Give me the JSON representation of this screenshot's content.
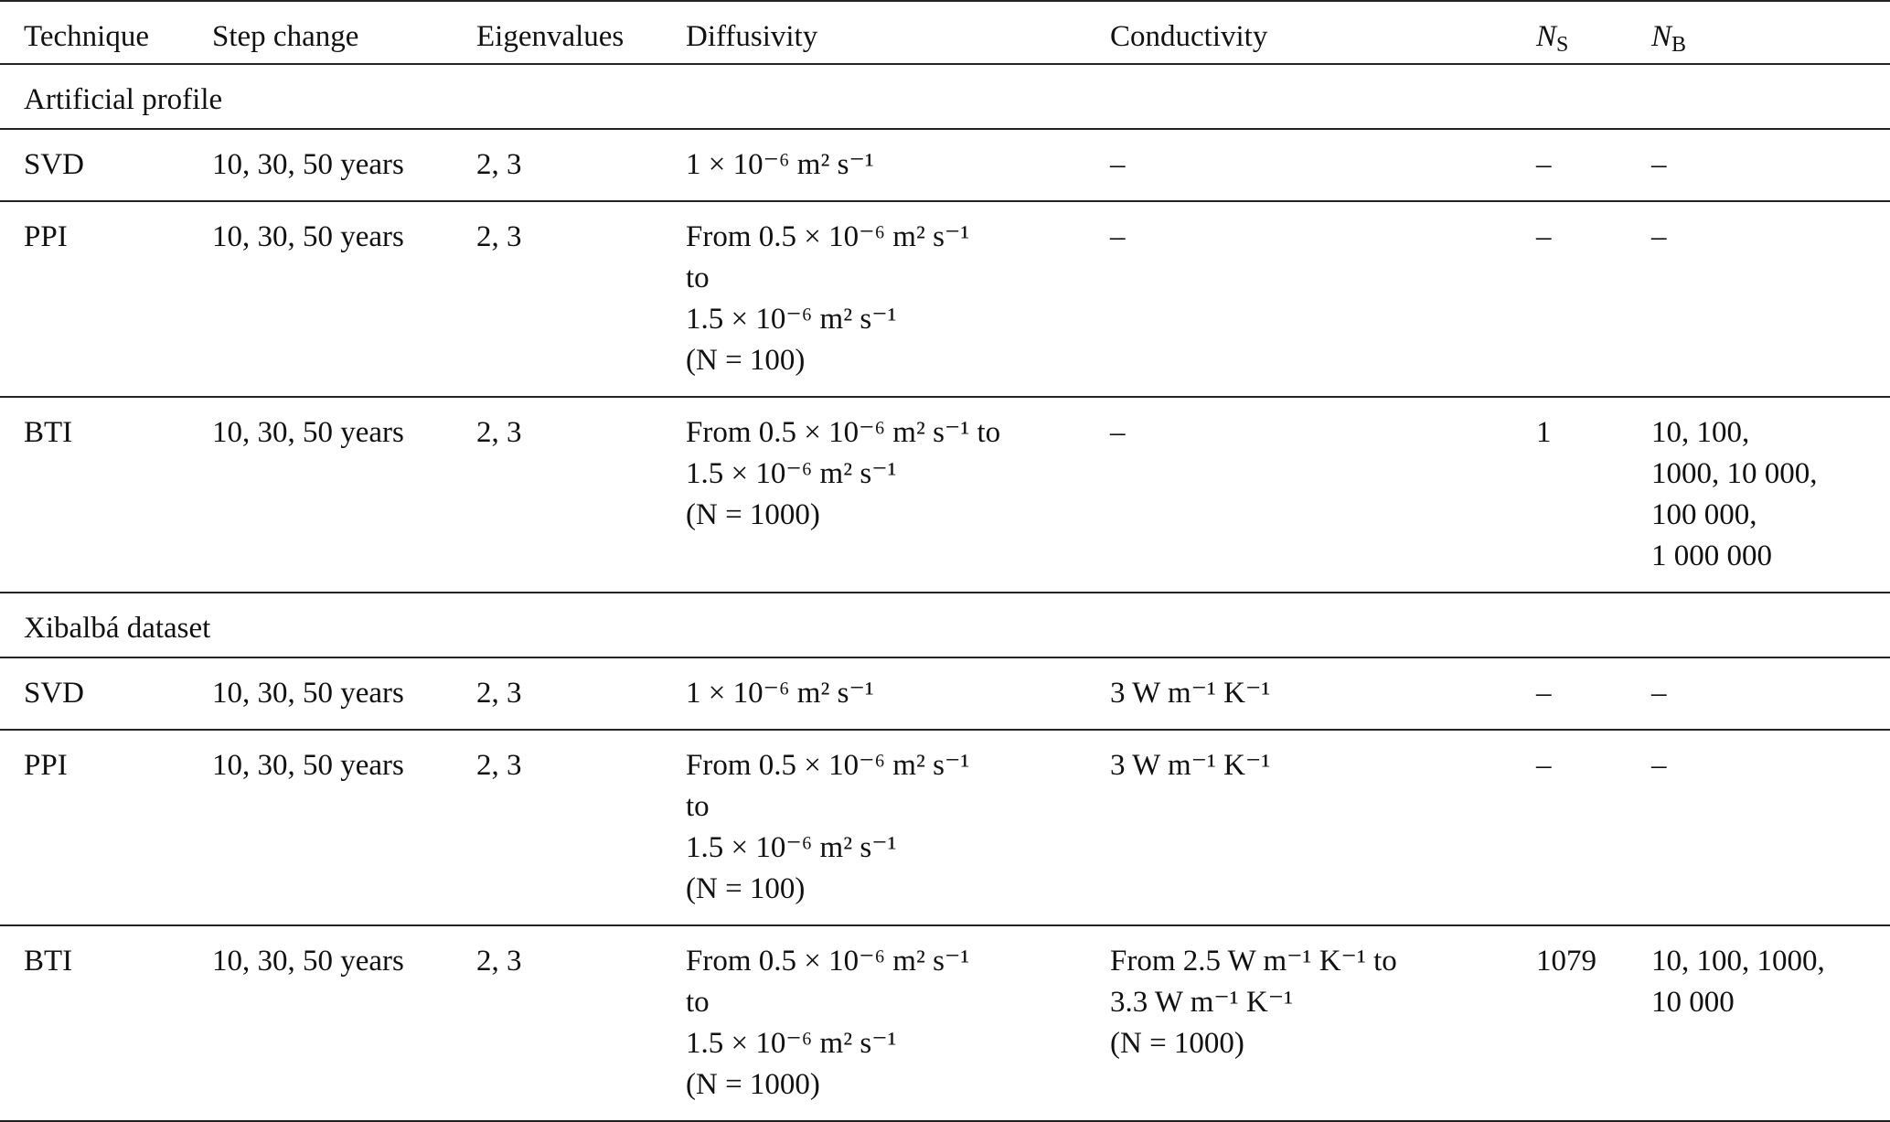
{
  "header": {
    "columns": [
      "Technique",
      "Step change",
      "Eigenvalues",
      "Diffusivity",
      "Conductivity"
    ],
    "ns": {
      "main": "N",
      "sub": "S"
    },
    "nb": {
      "main": "N",
      "sub": "B"
    }
  },
  "sections": [
    {
      "title": "Artificial profile",
      "rows": [
        {
          "cells": [
            [
              "SVD"
            ],
            [
              "10, 30, 50 years"
            ],
            [
              "2, 3"
            ],
            [
              "1 × 10⁻⁶ m² s⁻¹"
            ],
            [
              "–"
            ],
            [
              "–"
            ],
            [
              "–"
            ]
          ]
        },
        {
          "cells": [
            [
              "PPI"
            ],
            [
              "10, 30, 50 years"
            ],
            [
              "2, 3"
            ],
            [
              "From     0.5 × 10⁻⁶ m² s⁻¹",
              "to",
              "1.5 × 10⁻⁶ m² s⁻¹",
              "(N = 100)"
            ],
            [
              "–"
            ],
            [
              "–"
            ],
            [
              "–"
            ]
          ]
        },
        {
          "cells": [
            [
              "BTI"
            ],
            [
              "10, 30, 50 years"
            ],
            [
              "2, 3"
            ],
            [
              "From 0.5 × 10⁻⁶ m² s⁻¹ to",
              "1.5 × 10⁻⁶ m² s⁻¹",
              "(N = 1000)"
            ],
            [
              "–"
            ],
            [
              "1"
            ],
            [
              "10, 100,",
              "1000, 10 000,",
              "100 000,",
              "1 000 000"
            ]
          ]
        }
      ]
    },
    {
      "title": "Xibalbá dataset",
      "rows": [
        {
          "cells": [
            [
              "SVD"
            ],
            [
              "10, 30, 50 years"
            ],
            [
              "2, 3"
            ],
            [
              "1 × 10⁻⁶ m² s⁻¹"
            ],
            [
              "3 W m⁻¹ K⁻¹"
            ],
            [
              "–"
            ],
            [
              "–"
            ]
          ]
        },
        {
          "cells": [
            [
              "PPI"
            ],
            [
              "10, 30, 50 years"
            ],
            [
              "2, 3"
            ],
            [
              "From     0.5 × 10⁻⁶ m² s⁻¹",
              "to",
              "1.5 × 10⁻⁶ m² s⁻¹",
              "(N = 100)"
            ],
            [
              "3 W m⁻¹ K⁻¹"
            ],
            [
              "–"
            ],
            [
              "–"
            ]
          ]
        },
        {
          "cells": [
            [
              "BTI"
            ],
            [
              "10, 30, 50 years"
            ],
            [
              "2, 3"
            ],
            [
              "From     0.5 × 10⁻⁶ m² s⁻¹",
              "to",
              "1.5 × 10⁻⁶ m² s⁻¹",
              "(N = 1000)"
            ],
            [
              "From 2.5 W m⁻¹ K⁻¹ to",
              "3.3 W m⁻¹ K⁻¹",
              "(N = 1000)"
            ],
            [
              "1079"
            ],
            [
              "10, 100, 1000,",
              "10 000"
            ]
          ]
        }
      ]
    }
  ]
}
